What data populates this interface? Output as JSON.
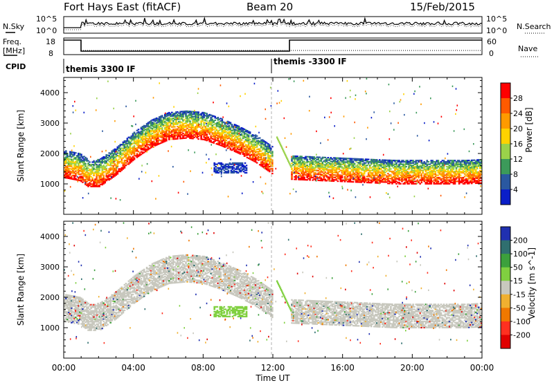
{
  "header": {
    "title": "Fort Hays East (fitACF)",
    "beam": "Beam 20",
    "date": "15/Feb/2015"
  },
  "panels": {
    "nsky": {
      "label": "N.Sky",
      "right_label": "N.Search",
      "left_ticks": [
        "10^5",
        "10^0"
      ],
      "right_ticks": [
        "10^5",
        "10^0"
      ]
    },
    "freq": {
      "label_line1": "Freq.",
      "label_line2": "[MHz]",
      "right_label": "Nave",
      "left_ticks": [
        "18",
        "8"
      ],
      "right_ticks": [
        "60",
        "0"
      ]
    },
    "cpid": {
      "label": "CPID",
      "modes": [
        "themis 3300 IF",
        "themis -3300 IF"
      ]
    },
    "power": {
      "ylabel": "Slant Range [km]",
      "colorbar_label": "Power [dB]",
      "colorbar_ticks": [
        "28",
        "24",
        "20",
        "16",
        "12",
        "8",
        "4"
      ]
    },
    "velocity": {
      "ylabel": "Slant Range [km]",
      "colorbar_label": "Velocity [m s^-1]",
      "colorbar_ticks": [
        "200",
        "100",
        "50",
        "15",
        "-15",
        "-50",
        "-100",
        "-200"
      ]
    }
  },
  "xaxis": {
    "label": "Time UT",
    "ticks": [
      "00:00",
      "04:00",
      "08:00",
      "12:00",
      "16:00",
      "20:00",
      "00:00"
    ]
  },
  "colors": {
    "power_scale": [
      "#ff0000",
      "#ff5a00",
      "#ff9a00",
      "#ffd200",
      "#9ad24a",
      "#3c9a5a",
      "#2a58a0",
      "#0a1ec8"
    ],
    "velocity_scale": [
      "#2030b0",
      "#2f6f6f",
      "#3ca03c",
      "#80d040",
      "#c8c8be",
      "#f0b030",
      "#f07800",
      "#ff3020",
      "#e00000"
    ],
    "ground_scatter": "#c8c8be"
  },
  "chart_data": [
    {
      "type": "heatmap",
      "name": "Power",
      "ylabel": "Slant Range [km]",
      "xlabel": "Time UT",
      "x_range_hours": [
        0,
        24
      ],
      "ylim": [
        0,
        4500
      ],
      "colorbar": {
        "label": "Power [dB]",
        "ticks": [
          28,
          24,
          20,
          16,
          12,
          8,
          4
        ]
      },
      "bands": [
        {
          "t_hours": [
            0.0,
            0.9,
            1.5,
            2.0,
            3.0,
            4.0,
            5.0,
            6.0,
            7.0,
            8.0,
            9.0,
            10.0,
            11.0,
            12.0
          ],
          "range_km": [
            1600,
            1500,
            1250,
            1300,
            1700,
            2200,
            2600,
            2850,
            2900,
            2850,
            2650,
            2400,
            2100,
            1700
          ]
        },
        {
          "t_hours": [
            13.0,
            15.0,
            17.0,
            19.0,
            21.0,
            23.0,
            24.0
          ],
          "range_km": [
            1500,
            1450,
            1400,
            1350,
            1350,
            1350,
            1380
          ]
        }
      ]
    },
    {
      "type": "heatmap",
      "name": "Velocity",
      "ylabel": "Slant Range [km]",
      "xlabel": "Time UT",
      "x_range_hours": [
        0,
        24
      ],
      "ylim": [
        0,
        4500
      ],
      "colorbar": {
        "label": "Velocity [m s^-1]",
        "ticks": [
          200,
          100,
          50,
          15,
          -15,
          -50,
          -100,
          -200
        ]
      }
    }
  ]
}
